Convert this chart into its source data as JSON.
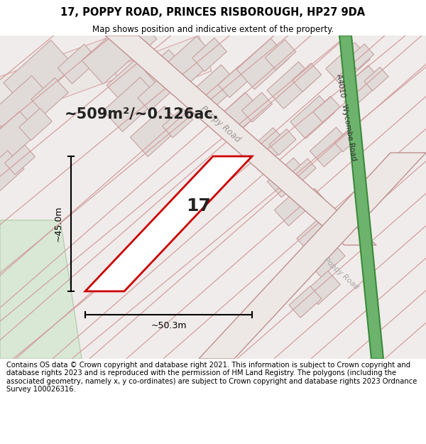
{
  "title_line1": "17, POPPY ROAD, PRINCES RISBOROUGH, HP27 9DA",
  "title_line2": "Map shows position and indicative extent of the property.",
  "footer": "Contains OS data © Crown copyright and database right 2021. This information is subject to Crown copyright and database rights 2023 and is reproduced with the permission of\nHM Land Registry. The polygons (including the associated geometry, namely x, y co-ordinates) are subject to Crown copyright and database rights 2023 Ordnance Survey\n100026316.",
  "area_label": "~509m²/~0.126ac.",
  "width_label": "~50.3m",
  "height_label": "~45.0m",
  "property_number": "17",
  "road_label_main": "Poppy Road",
  "road_label_right_top": "A4010 · Wycombe Road",
  "road_label_right_bot": "Poppy Road",
  "map_bg": "#f2eeeb",
  "property_fill": "#ffffff",
  "property_outline": "#cc0000",
  "bldg_fill": "#e8e4e1",
  "bldg_edge": "#c8a0a0",
  "road_plot_color": "#e8c8c8",
  "green_color": "#6db36d",
  "green_dark": "#3a8a3a",
  "footer_fontsize": 7.2,
  "title_fontsize": 10.5
}
